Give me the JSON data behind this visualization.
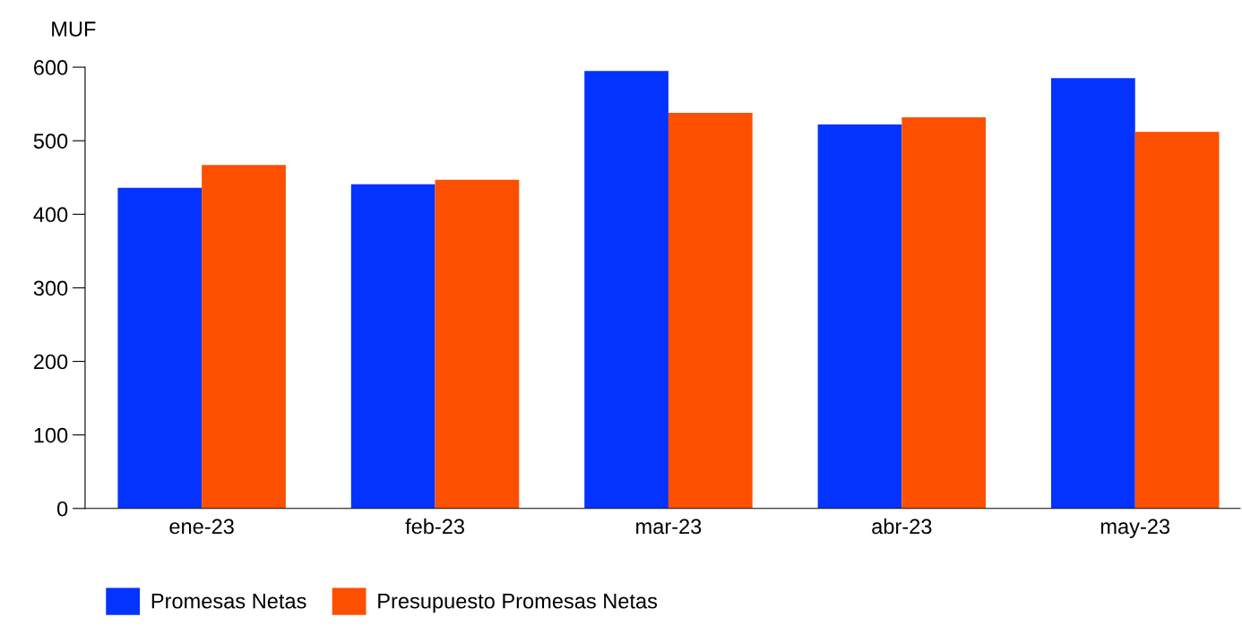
{
  "chart_data": {
    "type": "bar",
    "ylabel": "MUF",
    "categories": [
      "ene-23",
      "feb-23",
      "mar-23",
      "abr-23",
      "may-23"
    ],
    "series": [
      {
        "name": "Promesas Netas",
        "color": "#0433ff",
        "values": [
          436,
          441,
          595,
          522,
          585
        ]
      },
      {
        "name": "Presupuesto Promesas Netas",
        "color": "#fc5000",
        "values": [
          467,
          447,
          538,
          532,
          512
        ]
      }
    ],
    "ylim": [
      0,
      600
    ],
    "yticks": [
      0,
      100,
      200,
      300,
      400,
      500,
      600
    ],
    "grid": false,
    "legend": "bottom left"
  }
}
